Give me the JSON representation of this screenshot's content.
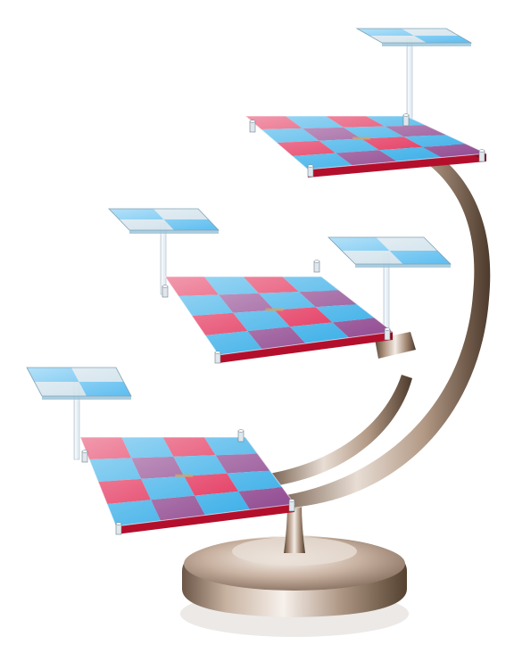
{
  "subject": {
    "name": "three-dimensional-chess-set",
    "main_boards": 3,
    "attack_boards": 4,
    "board_grid": 4,
    "attack_grid": 2
  },
  "colors": {
    "background": "#ffffff",
    "square_red": "#e01e4a",
    "square_blue": "#2aa8e6",
    "square_purple": "#8a3f8a",
    "board_edge": "#b30f2c",
    "attack_square_blue": "#4ab6ee",
    "attack_square_clear": "#c9dde8",
    "chrome_light": "#f3ece6",
    "chrome_mid": "#b59a86",
    "chrome_dark": "#5a4636",
    "post_clear": "#e4eef4"
  }
}
